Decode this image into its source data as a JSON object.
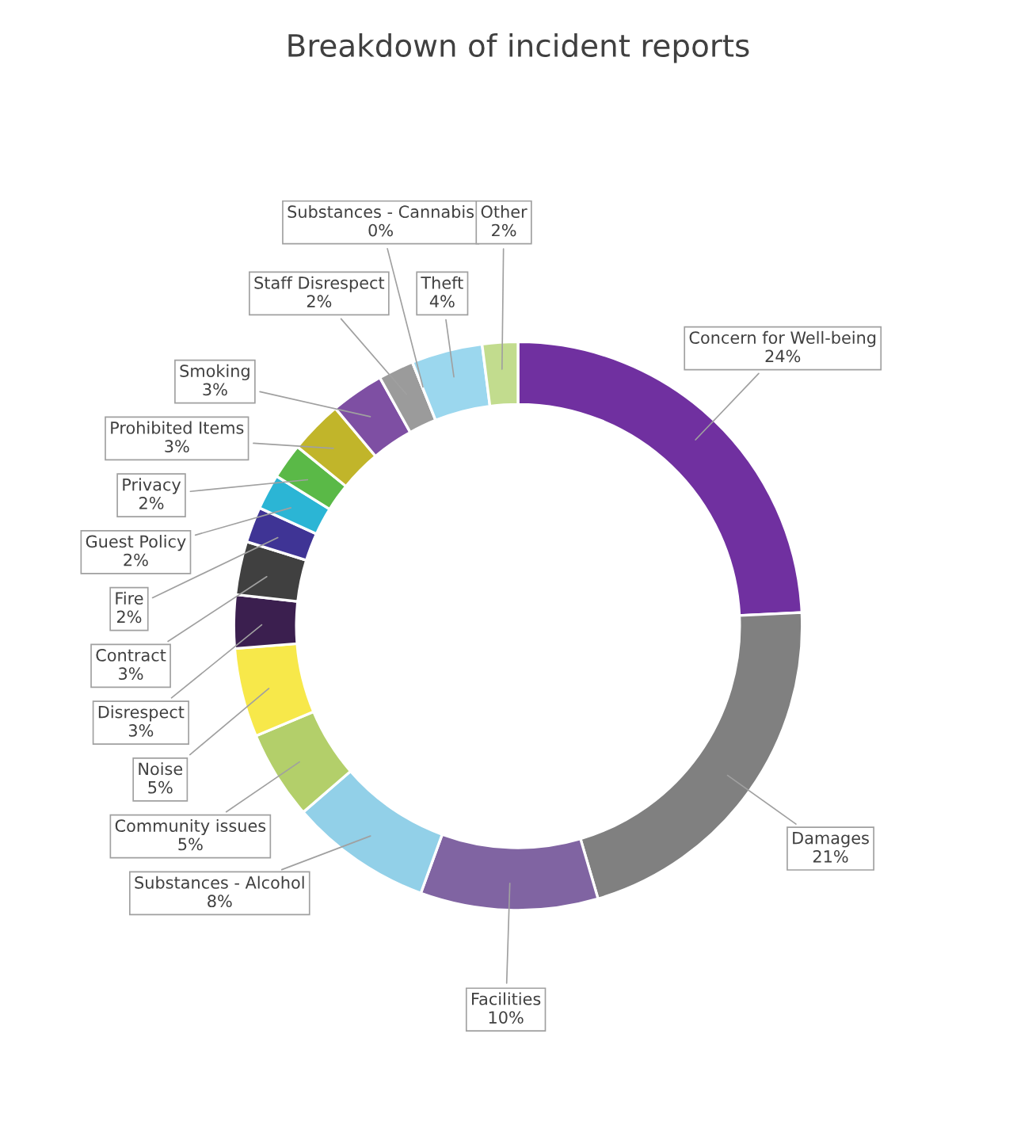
{
  "chart_data": {
    "type": "donut",
    "title": "Breakdown of incident reports",
    "categories": [
      "Concern for Well-being",
      "Damages",
      "Facilities",
      "Substances - Alcohol",
      "Community issues",
      "Noise",
      "Disrespect",
      "Contract",
      "Fire",
      "Guest Policy",
      "Privacy",
      "Prohibited Items",
      "Smoking",
      "Staff Disrespect",
      "Substances - Cannabis",
      "Theft",
      "Other"
    ],
    "values": [
      24,
      21,
      10,
      8,
      5,
      5,
      3,
      3,
      2,
      2,
      2,
      3,
      3,
      2,
      0,
      4,
      2
    ],
    "value_labels": [
      "24%",
      "21%",
      "10%",
      "8%",
      "5%",
      "5%",
      "3%",
      "3%",
      "2%",
      "2%",
      "2%",
      "3%",
      "3%",
      "2%",
      "0%",
      "4%",
      "2%"
    ],
    "colors": [
      "#7030a0",
      "#808080",
      "#8064a2",
      "#92d0e8",
      "#b3cf6a",
      "#f7e84a",
      "#3b1f4f",
      "#404040",
      "#3f3495",
      "#2bb5d5",
      "#5ab947",
      "#c1b52a",
      "#7e4fa3",
      "#9b9b9b",
      "#5a2e7e",
      "#9bd7ee",
      "#c2dc8e"
    ]
  }
}
